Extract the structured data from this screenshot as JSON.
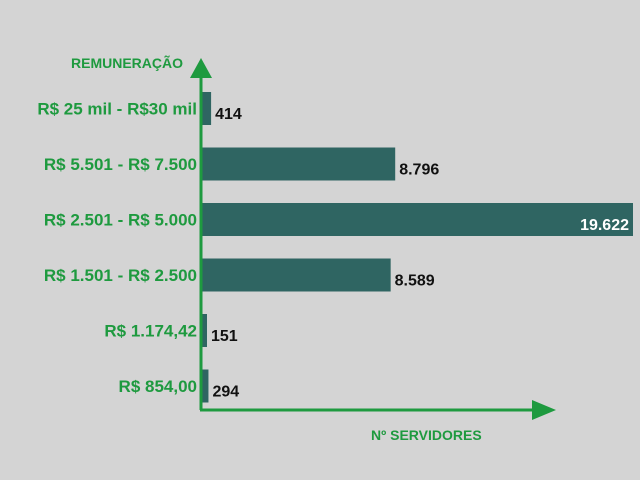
{
  "chart_data": {
    "type": "bar",
    "orientation": "horizontal",
    "categories": [
      "R$ 25 mil - R$30 mil",
      "R$ 5.501 - R$ 7.500",
      "R$ 2.501 - R$ 5.000",
      "R$ 1.501 - R$ 2.500",
      "R$ 1.174,42",
      "R$ 854,00"
    ],
    "values": [
      414,
      8796,
      19622,
      8589,
      151,
      294
    ],
    "value_labels": [
      "414",
      "8.796",
      "19.622",
      "8.589",
      "151",
      "294"
    ],
    "title": "",
    "xlabel": "Nº SERVIDORES",
    "ylabel": "REMUNERAÇÃO",
    "xlim": [
      0,
      19622
    ],
    "grid": false,
    "legend": "none"
  },
  "colors": {
    "background": "#d4d4d4",
    "bar": "#2f6562",
    "axis": "#1e9a3f",
    "category_text": "#1e9a3f",
    "value_text": "#111111",
    "value_text_inside": "#ffffff"
  }
}
